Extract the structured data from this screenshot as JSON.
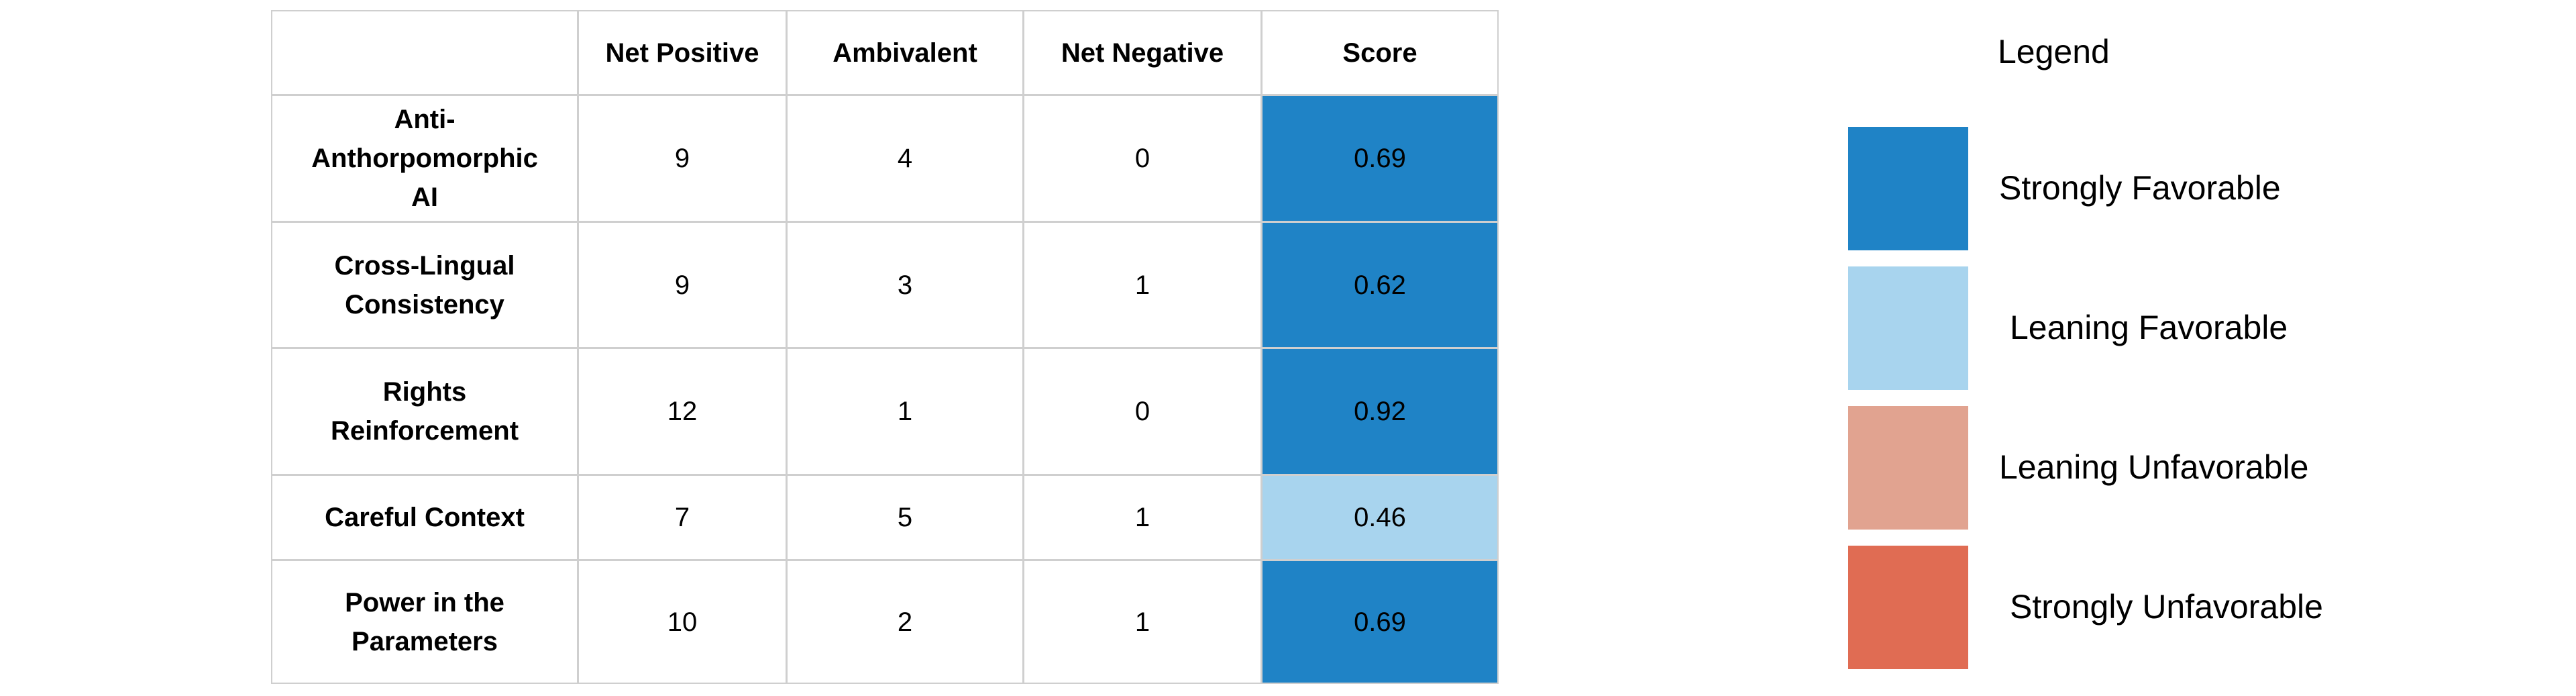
{
  "table": {
    "columns": [
      "Net Positive",
      "Ambivalent",
      "Net Negative",
      "Score"
    ],
    "rows": [
      {
        "label": "Anti-Anthorpomorphic AI",
        "values": [
          9,
          4,
          0
        ],
        "score": 0.69,
        "score_color": "#1f83c6"
      },
      {
        "label": "Cross-Lingual Consistency",
        "values": [
          9,
          3,
          1
        ],
        "score": 0.62,
        "score_color": "#1f83c6"
      },
      {
        "label": "Rights Reinforcement",
        "values": [
          12,
          1,
          0
        ],
        "score": 0.92,
        "score_color": "#1f83c6"
      },
      {
        "label": "Careful Context",
        "values": [
          7,
          5,
          1
        ],
        "score": 0.46,
        "score_color": "#a8d4ee"
      },
      {
        "label": "Power in the Parameters",
        "values": [
          10,
          2,
          1
        ],
        "score": 0.69,
        "score_color": "#1f83c6"
      }
    ]
  },
  "legend": {
    "title": "Legend",
    "items": [
      {
        "label": "Strongly Favorable",
        "color": "#1f83c6"
      },
      {
        "label": "Leaning Favorable",
        "color": "#a8d4ee"
      },
      {
        "label": "Leaning Unfavorable",
        "color": "#e1a390"
      },
      {
        "label": "Strongly Unfavorable",
        "color": "#e06c53"
      }
    ]
  }
}
